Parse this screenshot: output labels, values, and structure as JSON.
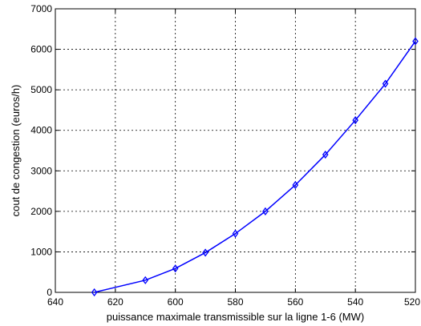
{
  "chart_data": {
    "type": "line",
    "title": "",
    "xlabel": "puissance maximale transmissible sur la ligne 1-6 (MW)",
    "ylabel": "cout de congestion (euros/h)",
    "x_reversed": true,
    "xlim": [
      640,
      520
    ],
    "ylim": [
      0,
      7000
    ],
    "grid": true,
    "x_ticks": [
      640,
      620,
      600,
      580,
      560,
      540,
      520
    ],
    "y_ticks": [
      0,
      1000,
      2000,
      3000,
      4000,
      5000,
      6000,
      7000
    ],
    "x_tick_labels": [
      "640",
      "620",
      "600",
      "580",
      "560",
      "540",
      "520"
    ],
    "y_tick_labels": [
      "0",
      "1000",
      "2000",
      "3000",
      "4000",
      "5000",
      "6000",
      "7000"
    ],
    "series": [
      {
        "marker": "diamond",
        "color": "#0000ff",
        "x": [
          627,
          610,
          600,
          590,
          580,
          570,
          560,
          550,
          540,
          530,
          520
        ],
        "y": [
          0,
          300,
          590,
          980,
          1450,
          2000,
          2650,
          3400,
          4250,
          5150,
          6200
        ]
      }
    ]
  }
}
